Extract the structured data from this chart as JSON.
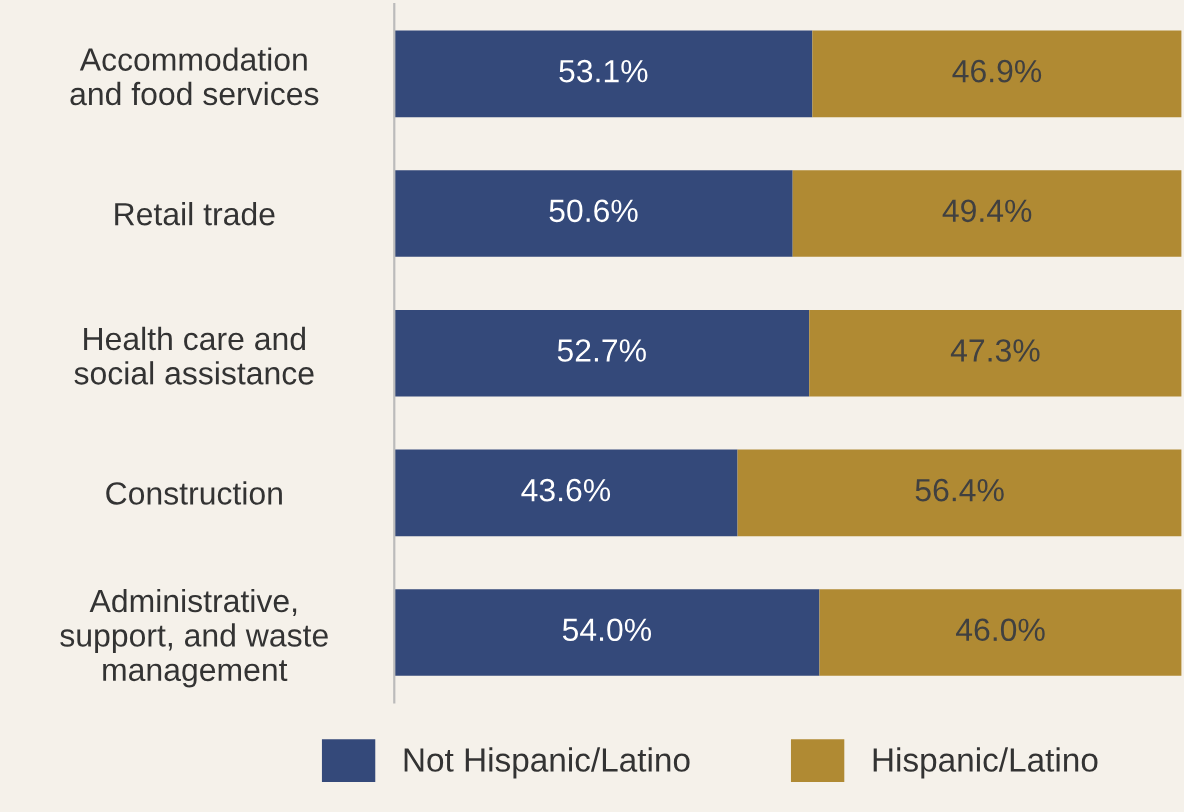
{
  "chart_data": {
    "type": "bar",
    "orientation": "horizontal",
    "stacked": true,
    "legend": "bottom",
    "grid": false,
    "categories": [
      "Accommodation\nand food services",
      "Retail trade",
      "Health care and\nsocial assistance",
      "Construction",
      "Administrative,\nsupport, and waste\nmanagement"
    ],
    "series": [
      {
        "name": "Not Hispanic/Latino",
        "color": "#34497a",
        "values": [
          53.1,
          50.6,
          52.7,
          43.6,
          54.0
        ],
        "value_labels": [
          "53.1%",
          "50.6%",
          "52.7%",
          "43.6%",
          "54.0%"
        ]
      },
      {
        "name": "Hispanic/Latino",
        "color": "#b08a33",
        "values": [
          46.9,
          49.4,
          47.3,
          56.4,
          46.0
        ],
        "value_labels": [
          "46.9%",
          "49.4%",
          "47.3%",
          "56.4%",
          "46.0%"
        ]
      }
    ]
  }
}
